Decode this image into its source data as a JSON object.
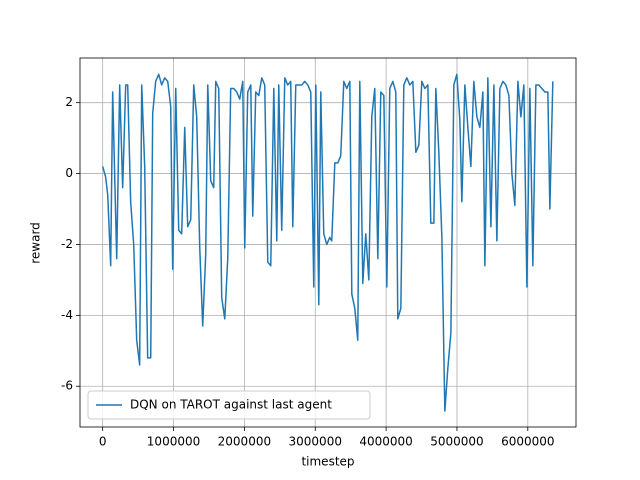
{
  "chart_data": {
    "type": "line",
    "x_label": "timestep",
    "y_label": "reward",
    "legend_loc": "lower left",
    "grid": true,
    "xlim": [
      -320000,
      6680000
    ],
    "ylim": [
      -7.15,
      3.26
    ],
    "xticks": [
      0,
      1000000,
      2000000,
      3000000,
      4000000,
      5000000,
      6000000
    ],
    "yticks": [
      -6,
      -4,
      -2,
      0,
      2
    ],
    "x": [
      0,
      42000,
      71000,
      113000,
      141000,
      198000,
      240000,
      282000,
      325000,
      353000,
      395000,
      438000,
      480000,
      522000,
      551000,
      593000,
      635000,
      678000,
      706000,
      748000,
      791000,
      833000,
      875000,
      918000,
      960000,
      988000,
      1031000,
      1073000,
      1115000,
      1158000,
      1200000,
      1243000,
      1285000,
      1327000,
      1370000,
      1412000,
      1454000,
      1483000,
      1525000,
      1567000,
      1596000,
      1638000,
      1680000,
      1723000,
      1765000,
      1807000,
      1850000,
      1892000,
      1934000,
      1977000,
      2005000,
      2047000,
      2090000,
      2118000,
      2160000,
      2203000,
      2245000,
      2287000,
      2330000,
      2372000,
      2415000,
      2457000,
      2485000,
      2527000,
      2570000,
      2612000,
      2654000,
      2683000,
      2725000,
      2767000,
      2810000,
      2852000,
      2895000,
      2937000,
      2979000,
      3008000,
      3050000,
      3078000,
      3120000,
      3163000,
      3205000,
      3233000,
      3276000,
      3318000,
      3360000,
      3403000,
      3445000,
      3488000,
      3516000,
      3558000,
      3600000,
      3629000,
      3671000,
      3713000,
      3756000,
      3798000,
      3840000,
      3883000,
      3925000,
      3968000,
      4010000,
      4052000,
      4095000,
      4137000,
      4165000,
      4208000,
      4250000,
      4292000,
      4335000,
      4377000,
      4420000,
      4462000,
      4504000,
      4547000,
      4589000,
      4631000,
      4674000,
      4702000,
      4744000,
      4787000,
      4829000,
      4871000,
      4914000,
      4956000,
      4998000,
      5041000,
      5069000,
      5111000,
      5154000,
      5196000,
      5238000,
      5281000,
      5323000,
      5366000,
      5394000,
      5436000,
      5479000,
      5521000,
      5563000,
      5606000,
      5648000,
      5690000,
      5733000,
      5775000,
      5817000,
      5860000,
      5902000,
      5944000,
      5987000,
      6029000,
      6071000,
      6114000,
      6156000,
      6198000,
      6241000,
      6283000,
      6311000,
      6353000
    ],
    "series": [
      {
        "name": "DQN on TAROT against last agent",
        "color": "#1f77b4",
        "values": [
          0.2,
          -0.1,
          -0.6,
          -2.6,
          2.3,
          -2.4,
          2.5,
          -0.4,
          2.5,
          2.5,
          -0.8,
          -2.0,
          -4.7,
          -5.4,
          2.5,
          0.2,
          -5.2,
          -5.2,
          1.7,
          2.6,
          2.8,
          2.5,
          2.7,
          2.6,
          1.9,
          -2.7,
          2.4,
          -1.6,
          -1.7,
          1.3,
          -1.5,
          -1.3,
          2.5,
          1.6,
          -2.1,
          -4.3,
          -2.3,
          2.5,
          -0.2,
          -0.4,
          2.6,
          2.4,
          -3.5,
          -4.1,
          -2.4,
          2.4,
          2.4,
          2.3,
          2.1,
          2.6,
          -2.1,
          2.3,
          2.5,
          -1.2,
          2.3,
          2.2,
          2.7,
          2.5,
          -2.5,
          -2.6,
          2.4,
          -1.9,
          2.5,
          -1.6,
          2.7,
          2.5,
          2.6,
          -1.5,
          2.5,
          2.5,
          2.5,
          2.6,
          2.5,
          2.3,
          -3.2,
          2.5,
          -3.7,
          2.3,
          -1.7,
          -2.0,
          -1.8,
          -1.9,
          0.3,
          0.3,
          0.5,
          2.6,
          2.4,
          2.6,
          -3.4,
          -3.8,
          -4.7,
          2.6,
          -3.1,
          -1.7,
          -3.0,
          1.6,
          2.4,
          -2.4,
          2.3,
          2.2,
          -3.2,
          2.4,
          2.6,
          2.3,
          -4.1,
          -3.8,
          2.5,
          2.7,
          2.5,
          2.6,
          0.6,
          0.8,
          2.6,
          2.4,
          2.5,
          -1.4,
          -1.4,
          2.4,
          0.6,
          -1.8,
          -6.7,
          -5.5,
          -4.5,
          2.5,
          2.8,
          1.5,
          -0.8,
          2.5,
          1.3,
          0.2,
          2.6,
          1.6,
          1.3,
          2.3,
          -2.6,
          2.7,
          -1.5,
          2.5,
          -1.9,
          2.4,
          2.6,
          2.5,
          2.2,
          0.0,
          -0.9,
          2.6,
          1.6,
          2.5,
          -3.2,
          2.4,
          -2.6,
          2.5,
          2.5,
          2.4,
          2.3,
          2.3,
          -1.0,
          2.6
        ]
      }
    ]
  }
}
